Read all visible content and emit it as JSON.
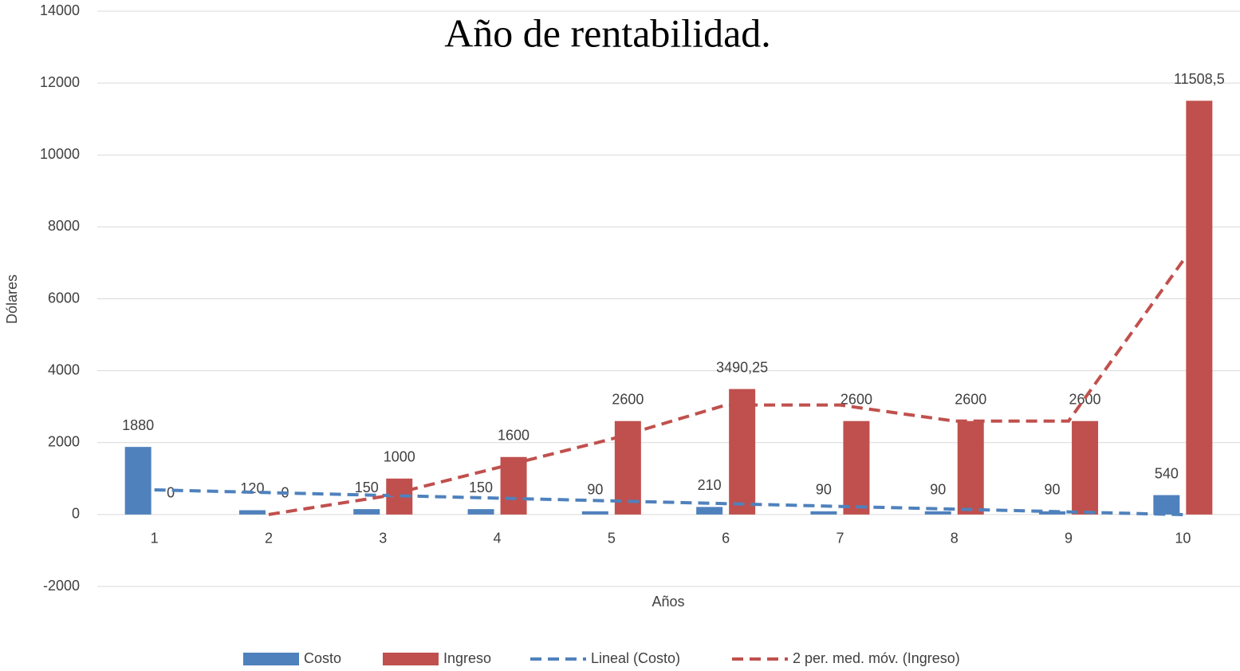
{
  "chart_data": {
    "type": "bar",
    "title": "Año de rentabilidad.",
    "x_label": "Años",
    "y_label": "Dólares",
    "categories": [
      "1",
      "2",
      "3",
      "4",
      "5",
      "6",
      "7",
      "8",
      "9",
      "10"
    ],
    "series": [
      {
        "name": "Costo",
        "type": "bar",
        "color": "#4f81bd",
        "values": [
          1880,
          120,
          150,
          150,
          90,
          210,
          90,
          90,
          90,
          540
        ]
      },
      {
        "name": "Ingreso",
        "type": "bar",
        "color": "#c0504d",
        "values": [
          0,
          0,
          1000,
          1600,
          2600,
          3490.25,
          2600,
          2600,
          2600,
          11508.5
        ],
        "value_labels": [
          "0",
          "0",
          "1000",
          "1600",
          "2600",
          "3490,25",
          "2600",
          "2600",
          "2600",
          "11508,5"
        ]
      },
      {
        "name": "Lineal (Costo)",
        "type": "line",
        "dashed": true,
        "color": "#4f81bd",
        "values": [
          686,
          609,
          532,
          456,
          379,
          303,
          226,
          150,
          73,
          -3
        ]
      },
      {
        "name": "2 per. med. móv. (Ingreso)",
        "type": "line",
        "dashed": true,
        "color": "#c0504d",
        "values": [
          null,
          0,
          500,
          1300,
          2100,
          3045,
          3045,
          2600,
          2600,
          7054
        ]
      }
    ],
    "ylim": [
      -2000,
      14000
    ],
    "yticks": [
      -2000,
      0,
      2000,
      4000,
      6000,
      8000,
      10000,
      12000,
      14000
    ],
    "grid": true,
    "legend": "bottom"
  }
}
